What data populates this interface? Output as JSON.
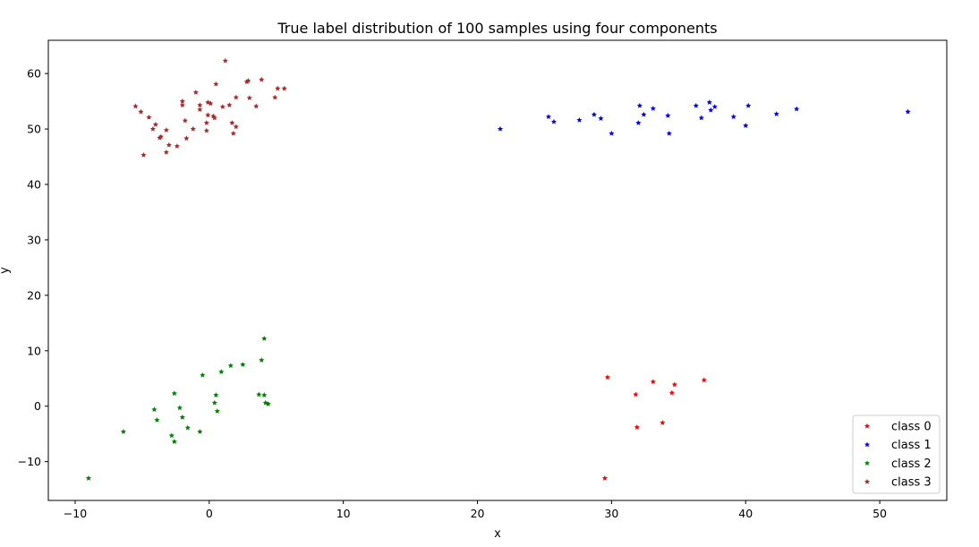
{
  "chart_data": {
    "type": "scatter",
    "title": "True label distribution of 100 samples using four components",
    "xlabel": "x",
    "ylabel": "y",
    "xlim": [
      -12,
      55
    ],
    "ylim": [
      -17,
      66
    ],
    "xticks": [
      -10,
      0,
      10,
      20,
      30,
      40,
      50
    ],
    "yticks": [
      -10,
      0,
      10,
      20,
      30,
      40,
      50,
      60
    ],
    "grid": false,
    "legend_position": "lower-right",
    "series": [
      {
        "name": "class 0",
        "color": "#ff0000",
        "points": [
          [
            29.7,
            5.2
          ],
          [
            31.8,
            2.1
          ],
          [
            31.9,
            -3.8
          ],
          [
            33.1,
            4.4
          ],
          [
            33.8,
            -3.0
          ],
          [
            34.5,
            2.4
          ],
          [
            34.7,
            3.9
          ],
          [
            36.9,
            4.7
          ],
          [
            29.5,
            -13.0
          ]
        ]
      },
      {
        "name": "class 1",
        "color": "#0000ff",
        "points": [
          [
            21.7,
            50.0
          ],
          [
            25.3,
            52.2
          ],
          [
            25.7,
            51.3
          ],
          [
            27.6,
            51.6
          ],
          [
            28.7,
            52.6
          ],
          [
            29.2,
            51.9
          ],
          [
            30.0,
            49.2
          ],
          [
            32.0,
            51.1
          ],
          [
            32.1,
            54.2
          ],
          [
            32.4,
            52.6
          ],
          [
            33.1,
            53.7
          ],
          [
            34.2,
            52.4
          ],
          [
            34.3,
            49.2
          ],
          [
            36.3,
            54.2
          ],
          [
            36.7,
            52.0
          ],
          [
            37.3,
            54.8
          ],
          [
            37.4,
            53.4
          ],
          [
            37.7,
            54.0
          ],
          [
            39.1,
            52.2
          ],
          [
            40.0,
            50.6
          ],
          [
            40.2,
            54.2
          ],
          [
            42.3,
            52.7
          ],
          [
            43.8,
            53.6
          ],
          [
            52.1,
            53.1
          ]
        ]
      },
      {
        "name": "class 2",
        "color": "#008000",
        "points": [
          [
            -9.0,
            -13.0
          ],
          [
            -6.4,
            -4.6
          ],
          [
            -4.1,
            -0.6
          ],
          [
            -3.9,
            -2.5
          ],
          [
            -2.8,
            -5.3
          ],
          [
            -2.6,
            2.3
          ],
          [
            -2.6,
            -6.4
          ],
          [
            -2.2,
            -0.3
          ],
          [
            -2.0,
            -2.0
          ],
          [
            -1.6,
            -3.9
          ],
          [
            -0.7,
            -4.6
          ],
          [
            -0.5,
            5.6
          ],
          [
            0.4,
            0.6
          ],
          [
            0.5,
            2.0
          ],
          [
            0.6,
            -0.9
          ],
          [
            0.9,
            6.2
          ],
          [
            1.6,
            7.3
          ],
          [
            2.5,
            7.5
          ],
          [
            3.7,
            2.1
          ],
          [
            3.9,
            8.3
          ],
          [
            4.1,
            12.2
          ],
          [
            4.1,
            2.0
          ],
          [
            4.2,
            0.6
          ],
          [
            4.4,
            0.4
          ]
        ]
      },
      {
        "name": "class 3",
        "color": "#a52a2a",
        "points": [
          [
            -5.5,
            54.1
          ],
          [
            -5.1,
            53.1
          ],
          [
            -4.9,
            45.3
          ],
          [
            -4.5,
            52.1
          ],
          [
            -4.2,
            50.0
          ],
          [
            -4.0,
            50.8
          ],
          [
            -3.7,
            48.4
          ],
          [
            -3.6,
            48.6
          ],
          [
            -3.2,
            49.8
          ],
          [
            -3.2,
            45.8
          ],
          [
            -3.0,
            47.1
          ],
          [
            -2.4,
            46.9
          ],
          [
            -2.0,
            55.0
          ],
          [
            -2.0,
            54.3
          ],
          [
            -1.8,
            51.5
          ],
          [
            -1.7,
            48.3
          ],
          [
            -1.2,
            50.0
          ],
          [
            -1.0,
            56.6
          ],
          [
            -0.7,
            53.5
          ],
          [
            -0.7,
            54.3
          ],
          [
            -0.2,
            51.1
          ],
          [
            -0.2,
            49.7
          ],
          [
            -0.1,
            52.5
          ],
          [
            -0.1,
            54.8
          ],
          [
            0.1,
            54.6
          ],
          [
            0.3,
            52.3
          ],
          [
            0.4,
            52.0
          ],
          [
            0.5,
            58.1
          ],
          [
            1.0,
            54.0
          ],
          [
            1.2,
            62.3
          ],
          [
            1.5,
            54.3
          ],
          [
            1.7,
            51.1
          ],
          [
            1.8,
            49.2
          ],
          [
            2.0,
            55.7
          ],
          [
            2.0,
            50.4
          ],
          [
            2.8,
            58.5
          ],
          [
            2.9,
            58.7
          ],
          [
            3.0,
            55.6
          ],
          [
            3.5,
            54.1
          ],
          [
            3.9,
            58.9
          ],
          [
            4.9,
            55.7
          ],
          [
            5.1,
            57.3
          ],
          [
            5.6,
            57.3
          ]
        ]
      }
    ]
  }
}
